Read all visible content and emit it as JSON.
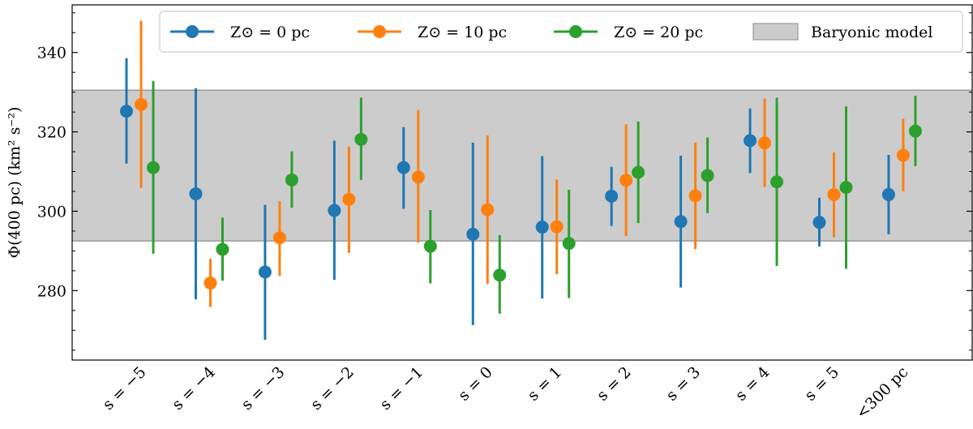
{
  "chart_data": {
    "type": "scatter",
    "ylabel": "Φ(400 pc) (km² s⁻²)",
    "categories": [
      "s = −5",
      "s = −4",
      "s = −3",
      "s = −2",
      "s = −1",
      "s = 0",
      "s = 1",
      "s = 2",
      "s = 3",
      "s = 4",
      "s = 5",
      "<300 pc"
    ],
    "ylim": [
      262.5,
      352
    ],
    "yticks": [
      280,
      300,
      320,
      340
    ],
    "band": {
      "name": "Baryonic model",
      "low": 292.5,
      "high": 330.5,
      "color": "#cccccc"
    },
    "legend_position": "top",
    "series": [
      {
        "name": "Z⊙ = 0 pc",
        "color": "#1f77b4",
        "values": [
          325.2,
          304.4,
          284.7,
          300.2,
          311.0,
          294.2,
          296.0,
          303.8,
          297.4,
          317.8,
          297.2,
          304.2
        ],
        "lower": [
          312.0,
          277.8,
          267.6,
          282.7,
          300.6,
          271.3,
          278.0,
          296.3,
          280.8,
          309.6,
          291.1,
          294.2
        ],
        "upper": [
          338.6,
          331.0,
          301.6,
          317.8,
          321.2,
          317.3,
          313.9,
          311.2,
          314.0,
          325.9,
          303.4,
          314.2
        ]
      },
      {
        "name": "Z⊙ = 10 pc",
        "color": "#ff7f0e",
        "values": [
          326.9,
          281.9,
          293.3,
          303.0,
          308.6,
          300.4,
          296.1,
          307.8,
          303.9,
          317.2,
          304.2,
          314.1
        ],
        "lower": [
          305.9,
          275.9,
          283.7,
          289.5,
          292.1,
          281.7,
          284.1,
          293.7,
          290.5,
          306.1,
          293.4,
          305.0
        ],
        "upper": [
          348.0,
          288.0,
          302.5,
          316.3,
          325.5,
          319.1,
          308.0,
          321.9,
          317.3,
          328.4,
          314.8,
          323.3
        ]
      },
      {
        "name": "Z⊙ = 20 pc",
        "color": "#2ca02c",
        "values": [
          311.0,
          290.4,
          307.9,
          318.1,
          291.2,
          283.9,
          291.9,
          309.8,
          309.0,
          307.4,
          306.0,
          320.2
        ],
        "lower": [
          289.3,
          282.5,
          300.9,
          307.9,
          281.8,
          274.2,
          278.1,
          297.0,
          299.5,
          286.2,
          285.5,
          311.4
        ],
        "upper": [
          332.8,
          298.4,
          315.1,
          328.6,
          300.3,
          294.0,
          305.4,
          322.6,
          318.6,
          328.6,
          326.4,
          329.1
        ]
      }
    ]
  }
}
